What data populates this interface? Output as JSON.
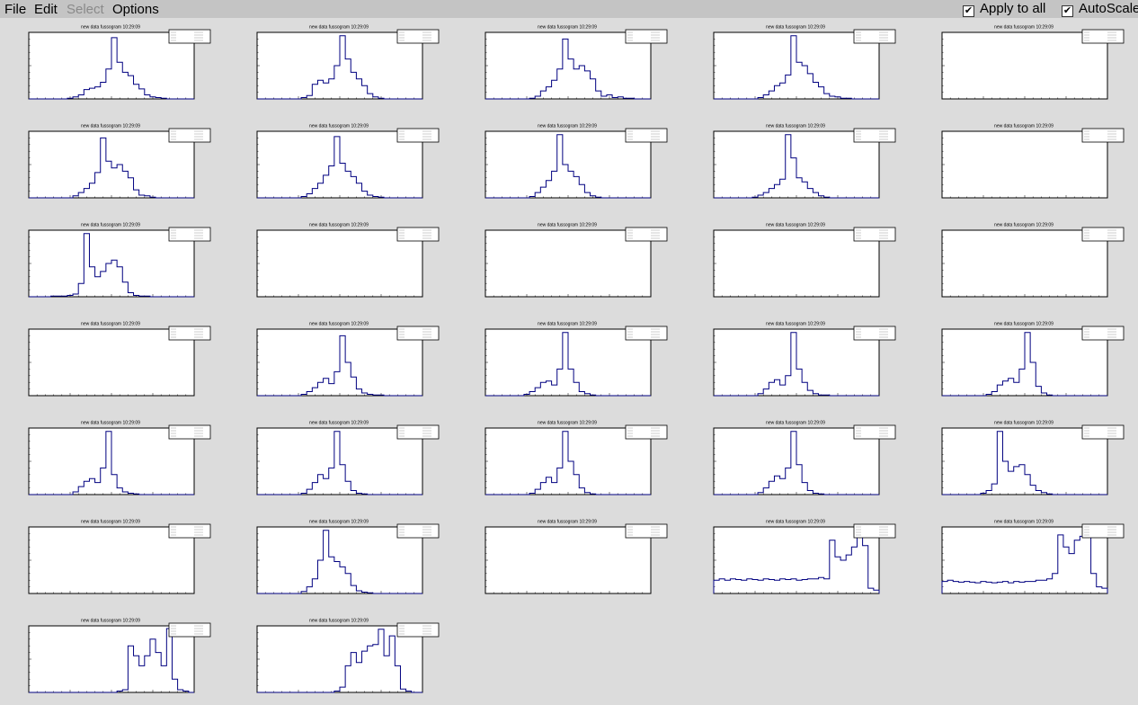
{
  "menu": [
    "File",
    "Edit",
    "Select",
    "Options"
  ],
  "menu_disabled": [
    false,
    false,
    true,
    false
  ],
  "checkboxes": [
    {
      "label": "Apply to all",
      "checked": true
    },
    {
      "label": "AutoScale",
      "checked": true
    }
  ],
  "ylim": [
    0,
    100
  ],
  "panels": [
    {
      "title": "new data fussogram  10:29:09",
      "values": [
        0,
        0,
        0,
        0,
        0,
        0,
        0,
        1,
        3,
        6,
        14,
        16,
        18,
        25,
        45,
        92,
        55,
        40,
        35,
        22,
        15,
        6,
        3,
        2,
        1,
        0,
        0,
        0,
        0,
        0
      ]
    },
    {
      "title": "new data fussogram  10:29:09",
      "values": [
        0,
        0,
        0,
        0,
        0,
        0,
        0,
        0,
        2,
        5,
        22,
        28,
        24,
        30,
        50,
        95,
        60,
        40,
        30,
        20,
        8,
        3,
        1,
        0,
        0,
        0,
        0,
        0,
        0,
        0
      ]
    },
    {
      "title": "new data fussogram  10:29:09",
      "values": [
        0,
        0,
        0,
        0,
        0,
        0,
        0,
        0,
        1,
        4,
        12,
        18,
        28,
        45,
        90,
        60,
        45,
        50,
        42,
        30,
        12,
        4,
        6,
        2,
        3,
        1,
        1,
        0,
        0,
        0
      ]
    },
    {
      "title": "new data fussogram  10:29:09",
      "values": [
        0,
        0,
        0,
        0,
        0,
        0,
        0,
        0,
        2,
        6,
        12,
        20,
        24,
        36,
        95,
        55,
        50,
        38,
        25,
        18,
        8,
        4,
        3,
        1,
        1,
        0,
        0,
        0,
        0,
        0
      ]
    },
    {
      "title": "new data fussogram  10:29:09"
    },
    {
      "title": "new data fussogram  10:29:09",
      "values": [
        0,
        0,
        0,
        0,
        0,
        0,
        0,
        0,
        3,
        8,
        14,
        22,
        38,
        90,
        55,
        45,
        50,
        40,
        30,
        12,
        4,
        3,
        1,
        0,
        0,
        0,
        0,
        0,
        0,
        0
      ]
    },
    {
      "title": "new data fussogram  10:29:09",
      "values": [
        0,
        0,
        0,
        0,
        0,
        0,
        0,
        0,
        2,
        6,
        14,
        22,
        34,
        48,
        92,
        52,
        40,
        32,
        22,
        10,
        4,
        2,
        1,
        0,
        0,
        0,
        0,
        0,
        0,
        0
      ]
    },
    {
      "title": "new data fussogram  10:29:09",
      "values": [
        0,
        0,
        0,
        0,
        0,
        0,
        0,
        0,
        2,
        8,
        16,
        26,
        40,
        95,
        50,
        40,
        32,
        20,
        8,
        3,
        1,
        0,
        0,
        0,
        0,
        0,
        0,
        0,
        0,
        0
      ]
    },
    {
      "title": "new data fussogram  10:29:09",
      "values": [
        0,
        0,
        0,
        0,
        0,
        0,
        0,
        1,
        4,
        8,
        14,
        20,
        28,
        95,
        60,
        30,
        24,
        14,
        8,
        3,
        1,
        0,
        0,
        0,
        0,
        0,
        0,
        0,
        0,
        0
      ]
    },
    {
      "title": "new data fussogram  10:29:09"
    },
    {
      "title": "new data fussogram  10:29:09",
      "values": [
        0,
        0,
        0,
        0,
        1,
        1,
        1,
        2,
        4,
        20,
        95,
        45,
        30,
        38,
        50,
        55,
        45,
        22,
        6,
        2,
        1,
        1,
        0,
        0,
        0,
        0,
        0,
        0,
        0,
        0
      ]
    },
    {
      "title": "new data fussogram  10:29:09"
    },
    {
      "title": "new data fussogram  10:29:09"
    },
    {
      "title": "new data fussogram  10:29:09"
    },
    {
      "title": "new data fussogram  10:29:09"
    },
    {
      "title": "new data fussogram  10:29:09"
    },
    {
      "title": "new data fussogram  10:29:09",
      "values": [
        0,
        0,
        0,
        0,
        0,
        0,
        0,
        0,
        2,
        6,
        12,
        20,
        26,
        18,
        36,
        90,
        50,
        28,
        10,
        4,
        2,
        1,
        1,
        0,
        0,
        0,
        0,
        0,
        0,
        0
      ]
    },
    {
      "title": "new data fussogram  10:29:09",
      "values": [
        0,
        0,
        0,
        0,
        0,
        0,
        0,
        2,
        6,
        12,
        20,
        22,
        16,
        40,
        95,
        40,
        20,
        6,
        3,
        1,
        0,
        0,
        0,
        0,
        0,
        0,
        0,
        0,
        0,
        0
      ]
    },
    {
      "title": "new data fussogram  10:29:09",
      "values": [
        0,
        0,
        0,
        0,
        0,
        0,
        0,
        0,
        3,
        10,
        20,
        24,
        16,
        30,
        95,
        40,
        20,
        8,
        3,
        1,
        1,
        0,
        0,
        0,
        0,
        0,
        0,
        0,
        0,
        0
      ]
    },
    {
      "title": "new data fussogram  10:29:09",
      "values": [
        0,
        0,
        0,
        0,
        0,
        0,
        0,
        0,
        2,
        6,
        16,
        22,
        26,
        20,
        40,
        95,
        50,
        14,
        4,
        1,
        0,
        0,
        0,
        0,
        0,
        0,
        0,
        0,
        0,
        0
      ]
    },
    {
      "title": "new data fussogram  10:29:09",
      "values": [
        0,
        0,
        0,
        0,
        0,
        0,
        0,
        0,
        4,
        12,
        20,
        24,
        18,
        40,
        95,
        30,
        10,
        4,
        2,
        1,
        0,
        0,
        0,
        0,
        0,
        0,
        0,
        0,
        0,
        0
      ]
    },
    {
      "title": "new data fussogram  10:29:09",
      "values": [
        0,
        0,
        0,
        0,
        0,
        0,
        0,
        0,
        2,
        8,
        18,
        30,
        24,
        40,
        95,
        45,
        20,
        6,
        2,
        1,
        0,
        0,
        0,
        0,
        0,
        0,
        0,
        0,
        0,
        0
      ]
    },
    {
      "title": "new data fussogram  10:29:09",
      "values": [
        0,
        0,
        0,
        0,
        0,
        0,
        0,
        0,
        2,
        8,
        18,
        26,
        18,
        40,
        95,
        50,
        30,
        10,
        3,
        1,
        0,
        0,
        0,
        0,
        0,
        0,
        0,
        0,
        0,
        0
      ]
    },
    {
      "title": "new data fussogram  10:29:09",
      "values": [
        0,
        0,
        0,
        0,
        0,
        0,
        0,
        0,
        3,
        10,
        20,
        28,
        24,
        40,
        95,
        45,
        18,
        6,
        2,
        1,
        0,
        0,
        0,
        0,
        0,
        0,
        0,
        0,
        0,
        0
      ]
    },
    {
      "title": "new data fussogram  10:29:09",
      "values": [
        0,
        0,
        0,
        0,
        0,
        0,
        0,
        2,
        6,
        16,
        95,
        50,
        35,
        42,
        45,
        30,
        14,
        6,
        3,
        1,
        0,
        0,
        0,
        0,
        0,
        0,
        0,
        0,
        0,
        0
      ]
    },
    {
      "title": "new data fussogram  10:29:09"
    },
    {
      "title": "new data fussogram  10:29:09",
      "values": [
        0,
        0,
        0,
        0,
        0,
        0,
        0,
        0,
        3,
        10,
        22,
        50,
        95,
        55,
        48,
        40,
        30,
        12,
        4,
        2,
        1,
        0,
        0,
        0,
        0,
        0,
        0,
        0,
        0,
        0
      ]
    },
    {
      "title": "new data fussogram  10:29:09"
    },
    {
      "title": "new data fussogram  10:29:09",
      "values": [
        20,
        22,
        20,
        22,
        21,
        20,
        22,
        21,
        20,
        22,
        21,
        20,
        22,
        21,
        22,
        20,
        21,
        22,
        22,
        24,
        22,
        80,
        55,
        50,
        58,
        70,
        90,
        72,
        8,
        5
      ]
    },
    {
      "title": "new data fussogram  10:29:09",
      "values": [
        18,
        20,
        18,
        17,
        18,
        17,
        16,
        18,
        17,
        16,
        17,
        18,
        16,
        18,
        17,
        18,
        18,
        20,
        20,
        22,
        30,
        88,
        70,
        60,
        80,
        86,
        95,
        30,
        10,
        8
      ]
    },
    {
      "title": "new data fussogram  10:29:09",
      "values": [
        0,
        0,
        0,
        0,
        0,
        0,
        0,
        0,
        0,
        0,
        0,
        0,
        0,
        0,
        0,
        0,
        2,
        4,
        70,
        55,
        40,
        55,
        80,
        60,
        40,
        96,
        20,
        4,
        2,
        0
      ]
    },
    {
      "title": "new data fussogram  10:29:09",
      "values": [
        0,
        0,
        0,
        0,
        0,
        0,
        0,
        0,
        0,
        0,
        0,
        0,
        0,
        0,
        2,
        8,
        40,
        60,
        45,
        62,
        70,
        72,
        95,
        55,
        85,
        40,
        5,
        2,
        0,
        0
      ]
    }
  ]
}
